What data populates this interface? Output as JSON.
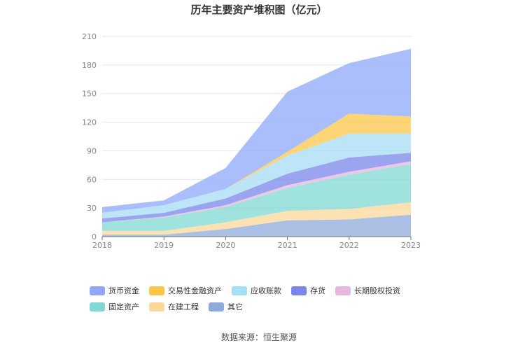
{
  "chart_data": {
    "type": "area",
    "stacked": true,
    "title": "历年主要资产堆积图（亿元）",
    "x": [
      "2018",
      "2019",
      "2020",
      "2021",
      "2022",
      "2023"
    ],
    "ylim": [
      0,
      210
    ],
    "yticks": [
      0,
      30,
      60,
      90,
      120,
      150,
      180,
      210
    ],
    "grid": true,
    "legend_position": "bottom",
    "series": [
      {
        "name": "其它",
        "color": "#8eaad9",
        "values": [
          2,
          2,
          8,
          17,
          18,
          23
        ]
      },
      {
        "name": "在建工程",
        "color": "#fbd89a",
        "values": [
          4,
          4,
          7,
          10,
          11,
          13
        ]
      },
      {
        "name": "固定资产",
        "color": "#7fd8d3",
        "values": [
          9,
          14,
          16,
          24,
          36,
          40
        ]
      },
      {
        "name": "长期股权投资",
        "color": "#e7b7dd",
        "values": [
          0,
          1,
          2,
          3,
          3,
          3
        ]
      },
      {
        "name": "存货",
        "color": "#7a86ea",
        "values": [
          4,
          4,
          7,
          12,
          15,
          9
        ]
      },
      {
        "name": "应收账款",
        "color": "#a6def5",
        "values": [
          6,
          8,
          10,
          19,
          25,
          20
        ]
      },
      {
        "name": "交易性金融资产",
        "color": "#fcc748",
        "values": [
          0,
          0,
          0,
          4,
          21,
          18
        ]
      },
      {
        "name": "货币资金",
        "color": "#8fa8fb",
        "values": [
          6,
          5,
          22,
          63,
          53,
          71
        ]
      }
    ],
    "legend_order": [
      "货币资金",
      "交易性金融资产",
      "应收账款",
      "存货",
      "长期股权投资",
      "固定资产",
      "在建工程",
      "其它"
    ]
  },
  "source_note": "数据来源：恒生聚源"
}
